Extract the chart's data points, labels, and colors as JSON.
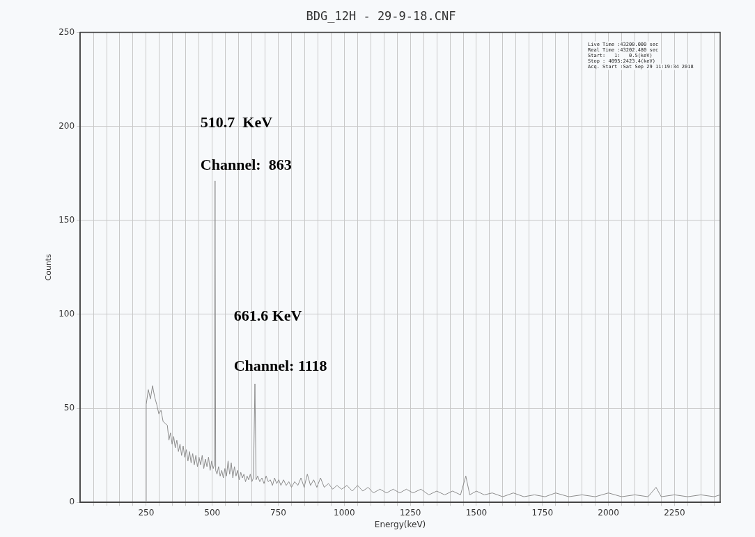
{
  "chart_data": {
    "type": "line",
    "title": "BDG_12H - 29-9-18.CNF",
    "xlabel": "Energy(keV)",
    "ylabel": "Counts",
    "x": [
      250,
      250,
      258,
      266,
      274,
      282,
      290,
      298,
      306,
      314,
      322,
      330,
      336,
      342,
      348,
      354,
      360,
      366,
      372,
      378,
      384,
      390,
      396,
      402,
      408,
      414,
      420,
      426,
      432,
      438,
      444,
      450,
      456,
      462,
      468,
      474,
      480,
      486,
      492,
      498,
      504,
      508,
      510.7,
      513,
      518,
      524,
      530,
      536,
      542,
      548,
      554,
      560,
      566,
      572,
      578,
      584,
      590,
      596,
      602,
      608,
      614,
      620,
      626,
      632,
      638,
      644,
      650,
      656,
      661.6,
      666,
      672,
      680,
      688,
      696,
      704,
      712,
      720,
      728,
      736,
      744,
      752,
      760,
      770,
      780,
      790,
      800,
      812,
      824,
      836,
      848,
      860,
      872,
      884,
      896,
      910,
      924,
      940,
      956,
      972,
      990,
      1010,
      1030,
      1050,
      1070,
      1090,
      1110,
      1135,
      1160,
      1185,
      1210,
      1235,
      1260,
      1290,
      1320,
      1350,
      1380,
      1410,
      1440,
      1460,
      1475,
      1500,
      1530,
      1560,
      1600,
      1640,
      1680,
      1720,
      1760,
      1800,
      1850,
      1900,
      1950,
      2000,
      2050,
      2100,
      2150,
      2180,
      2200,
      2250,
      2300,
      2350,
      2400,
      2423
    ],
    "series": [
      {
        "color": "#8c8c8c",
        "values": [
          0,
          52,
          60,
          55,
          62,
          56,
          52,
          47,
          49,
          43,
          42,
          41,
          33,
          37,
          31,
          35,
          29,
          33,
          27,
          31,
          25,
          30,
          24,
          28,
          22,
          27,
          21,
          26,
          20,
          25,
          19,
          24,
          20,
          25,
          18,
          23,
          19,
          24,
          17,
          22,
          18,
          20,
          171,
          17,
          15,
          19,
          14,
          17,
          13,
          18,
          14,
          22,
          15,
          21,
          13,
          19,
          14,
          17,
          12,
          16,
          13,
          15,
          11,
          14,
          12,
          15,
          11,
          13,
          63,
          12,
          14,
          11,
          13,
          10,
          14,
          11,
          12,
          9,
          13,
          10,
          12,
          9,
          12,
          9,
          11,
          8,
          11,
          9,
          13,
          8,
          15,
          9,
          12,
          8,
          13,
          8,
          10,
          7,
          9,
          7,
          9,
          6,
          9,
          6,
          8,
          5,
          7,
          5,
          7,
          5,
          7,
          5,
          7,
          4,
          6,
          4,
          6,
          4,
          14,
          4,
          6,
          4,
          5,
          3,
          5,
          3,
          4,
          3,
          5,
          3,
          4,
          3,
          5,
          3,
          4,
          3,
          8,
          3,
          4,
          3,
          4,
          3,
          4
        ]
      }
    ],
    "xlim": [
      0,
      2423
    ],
    "xticks": [
      {
        "value": 50,
        "label": null
      },
      {
        "value": 100,
        "label": null
      },
      {
        "value": 150,
        "label": null
      },
      {
        "value": 200,
        "label": null
      },
      250,
      {
        "value": 300,
        "label": null
      },
      {
        "value": 350,
        "label": null
      },
      {
        "value": 400,
        "label": null
      },
      {
        "value": 450,
        "label": null
      },
      500,
      {
        "value": 550,
        "label": null
      },
      {
        "value": 600,
        "label": null
      },
      {
        "value": 650,
        "label": null
      },
      {
        "value": 700,
        "label": null
      },
      750,
      {
        "value": 800,
        "label": null
      },
      {
        "value": 850,
        "label": null
      },
      {
        "value": 900,
        "label": null
      },
      {
        "value": 950,
        "label": null
      },
      1000,
      {
        "value": 1050,
        "label": null
      },
      {
        "value": 1100,
        "label": null
      },
      {
        "value": 1150,
        "label": null
      },
      {
        "value": 1200,
        "label": null
      },
      1250,
      {
        "value": 1300,
        "label": null
      },
      {
        "value": 1350,
        "label": null
      },
      {
        "value": 1400,
        "label": null
      },
      {
        "value": 1450,
        "label": null
      },
      1500,
      {
        "value": 1550,
        "label": null
      },
      {
        "value": 1600,
        "label": null
      },
      {
        "value": 1650,
        "label": null
      },
      {
        "value": 1700,
        "label": null
      },
      1750,
      {
        "value": 1800,
        "label": null
      },
      {
        "value": 1850,
        "label": null
      },
      {
        "value": 1900,
        "label": null
      },
      {
        "value": 1950,
        "label": null
      },
      2000,
      {
        "value": 2050,
        "label": null
      },
      {
        "value": 2100,
        "label": null
      },
      {
        "value": 2150,
        "label": null
      },
      {
        "value": 2200,
        "label": null
      },
      2250,
      {
        "value": 2300,
        "label": null
      },
      {
        "value": 2350,
        "label": null
      },
      {
        "value": 2400,
        "label": null
      }
    ],
    "ylim": [
      0,
      250
    ],
    "yticks": [
      0,
      50,
      100,
      150,
      200,
      250
    ],
    "grid": true,
    "marker": "none",
    "line_style": "solid",
    "annotations": [
      "510.7  KeV",
      "Channel:  863",
      "661.6 KeV",
      "Channel: 1118",
      "Live Time :43200.000 sec",
      "Real Time :43202.480 sec",
      "Start:   1:   0.5(keV)",
      "Stop : 4095:2423.4(keV)",
      "Acq. Start :Sat Sep 29 11:19:34 2018"
    ]
  }
}
